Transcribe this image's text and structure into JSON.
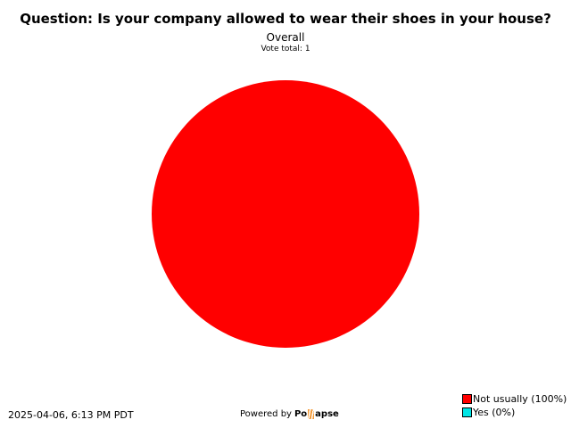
{
  "chart_data": {
    "type": "pie",
    "title": "Question: Is your company allowed to wear their shoes in your house?",
    "subtitle": "Overall",
    "vote_total": "Vote total: 1",
    "categories": [
      "Not usually",
      "Yes"
    ],
    "values": [
      1,
      0
    ],
    "percent_labels": [
      "Not usually (100%)",
      "Yes (0%)"
    ],
    "colors": [
      "#ff0000",
      "#00e5e5"
    ],
    "legend_position": "bottom-right"
  },
  "footer": {
    "timestamp": "2025-04-06, 6:13 PM PDT",
    "powered_by": "Powered by",
    "logo_text": "Pollapse",
    "logo_left": "Po",
    "logo_right": "apse"
  }
}
